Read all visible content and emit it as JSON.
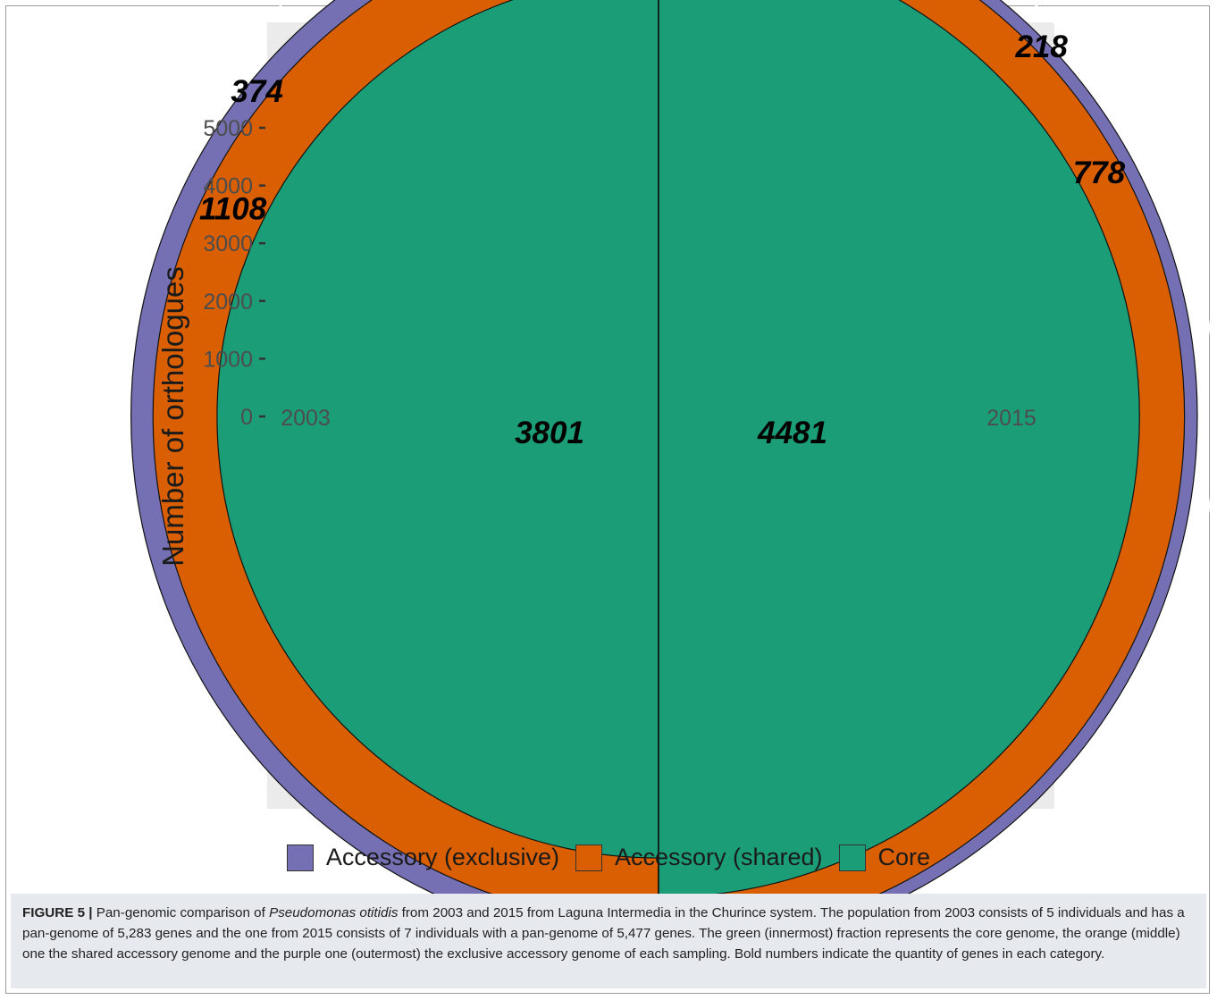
{
  "chart_data": {
    "type": "pie",
    "subtype": "polar-stacked-bar",
    "ylabel": "Number of orthologues",
    "ylim": [
      0,
      5500
    ],
    "y_ticks": [
      0,
      1000,
      2000,
      3000,
      4000,
      5000
    ],
    "y_tick_labels": [
      "0",
      "1000",
      "2000",
      "3000",
      "4000",
      "5000"
    ],
    "categories": [
      "2003",
      "2015"
    ],
    "series": [
      {
        "name": "Core",
        "color": "#1b9e77",
        "values": [
          3801,
          4481
        ]
      },
      {
        "name": "Accessory (shared)",
        "color": "#d95f02",
        "values": [
          1108,
          778
        ]
      },
      {
        "name": "Accessory (exclusive)",
        "color": "#7570b3",
        "values": [
          374,
          218
        ]
      }
    ],
    "legend_placement": "bottom",
    "grid": true,
    "panel_background": "#ebebeb"
  },
  "caption": {
    "label": "FIGURE 5 |",
    "text_before_species": " Pan-genomic comparison of ",
    "species": "Pseudomonas otitidis",
    "text_after_species": " from 2003 and 2015 from Laguna Intermedia in the Churince system. The population from 2003 consists of 5 individuals and has a pan-genome of 5,283 genes and the one from 2015 consists of 7 individuals with a pan-genome of 5,477 genes. The green (innermost) fraction represents the core genome, the orange (middle) one the shared accessory genome and the purple one (outermost) the exclusive accessory genome of each sampling. Bold numbers indicate the quantity of genes in each category."
  }
}
